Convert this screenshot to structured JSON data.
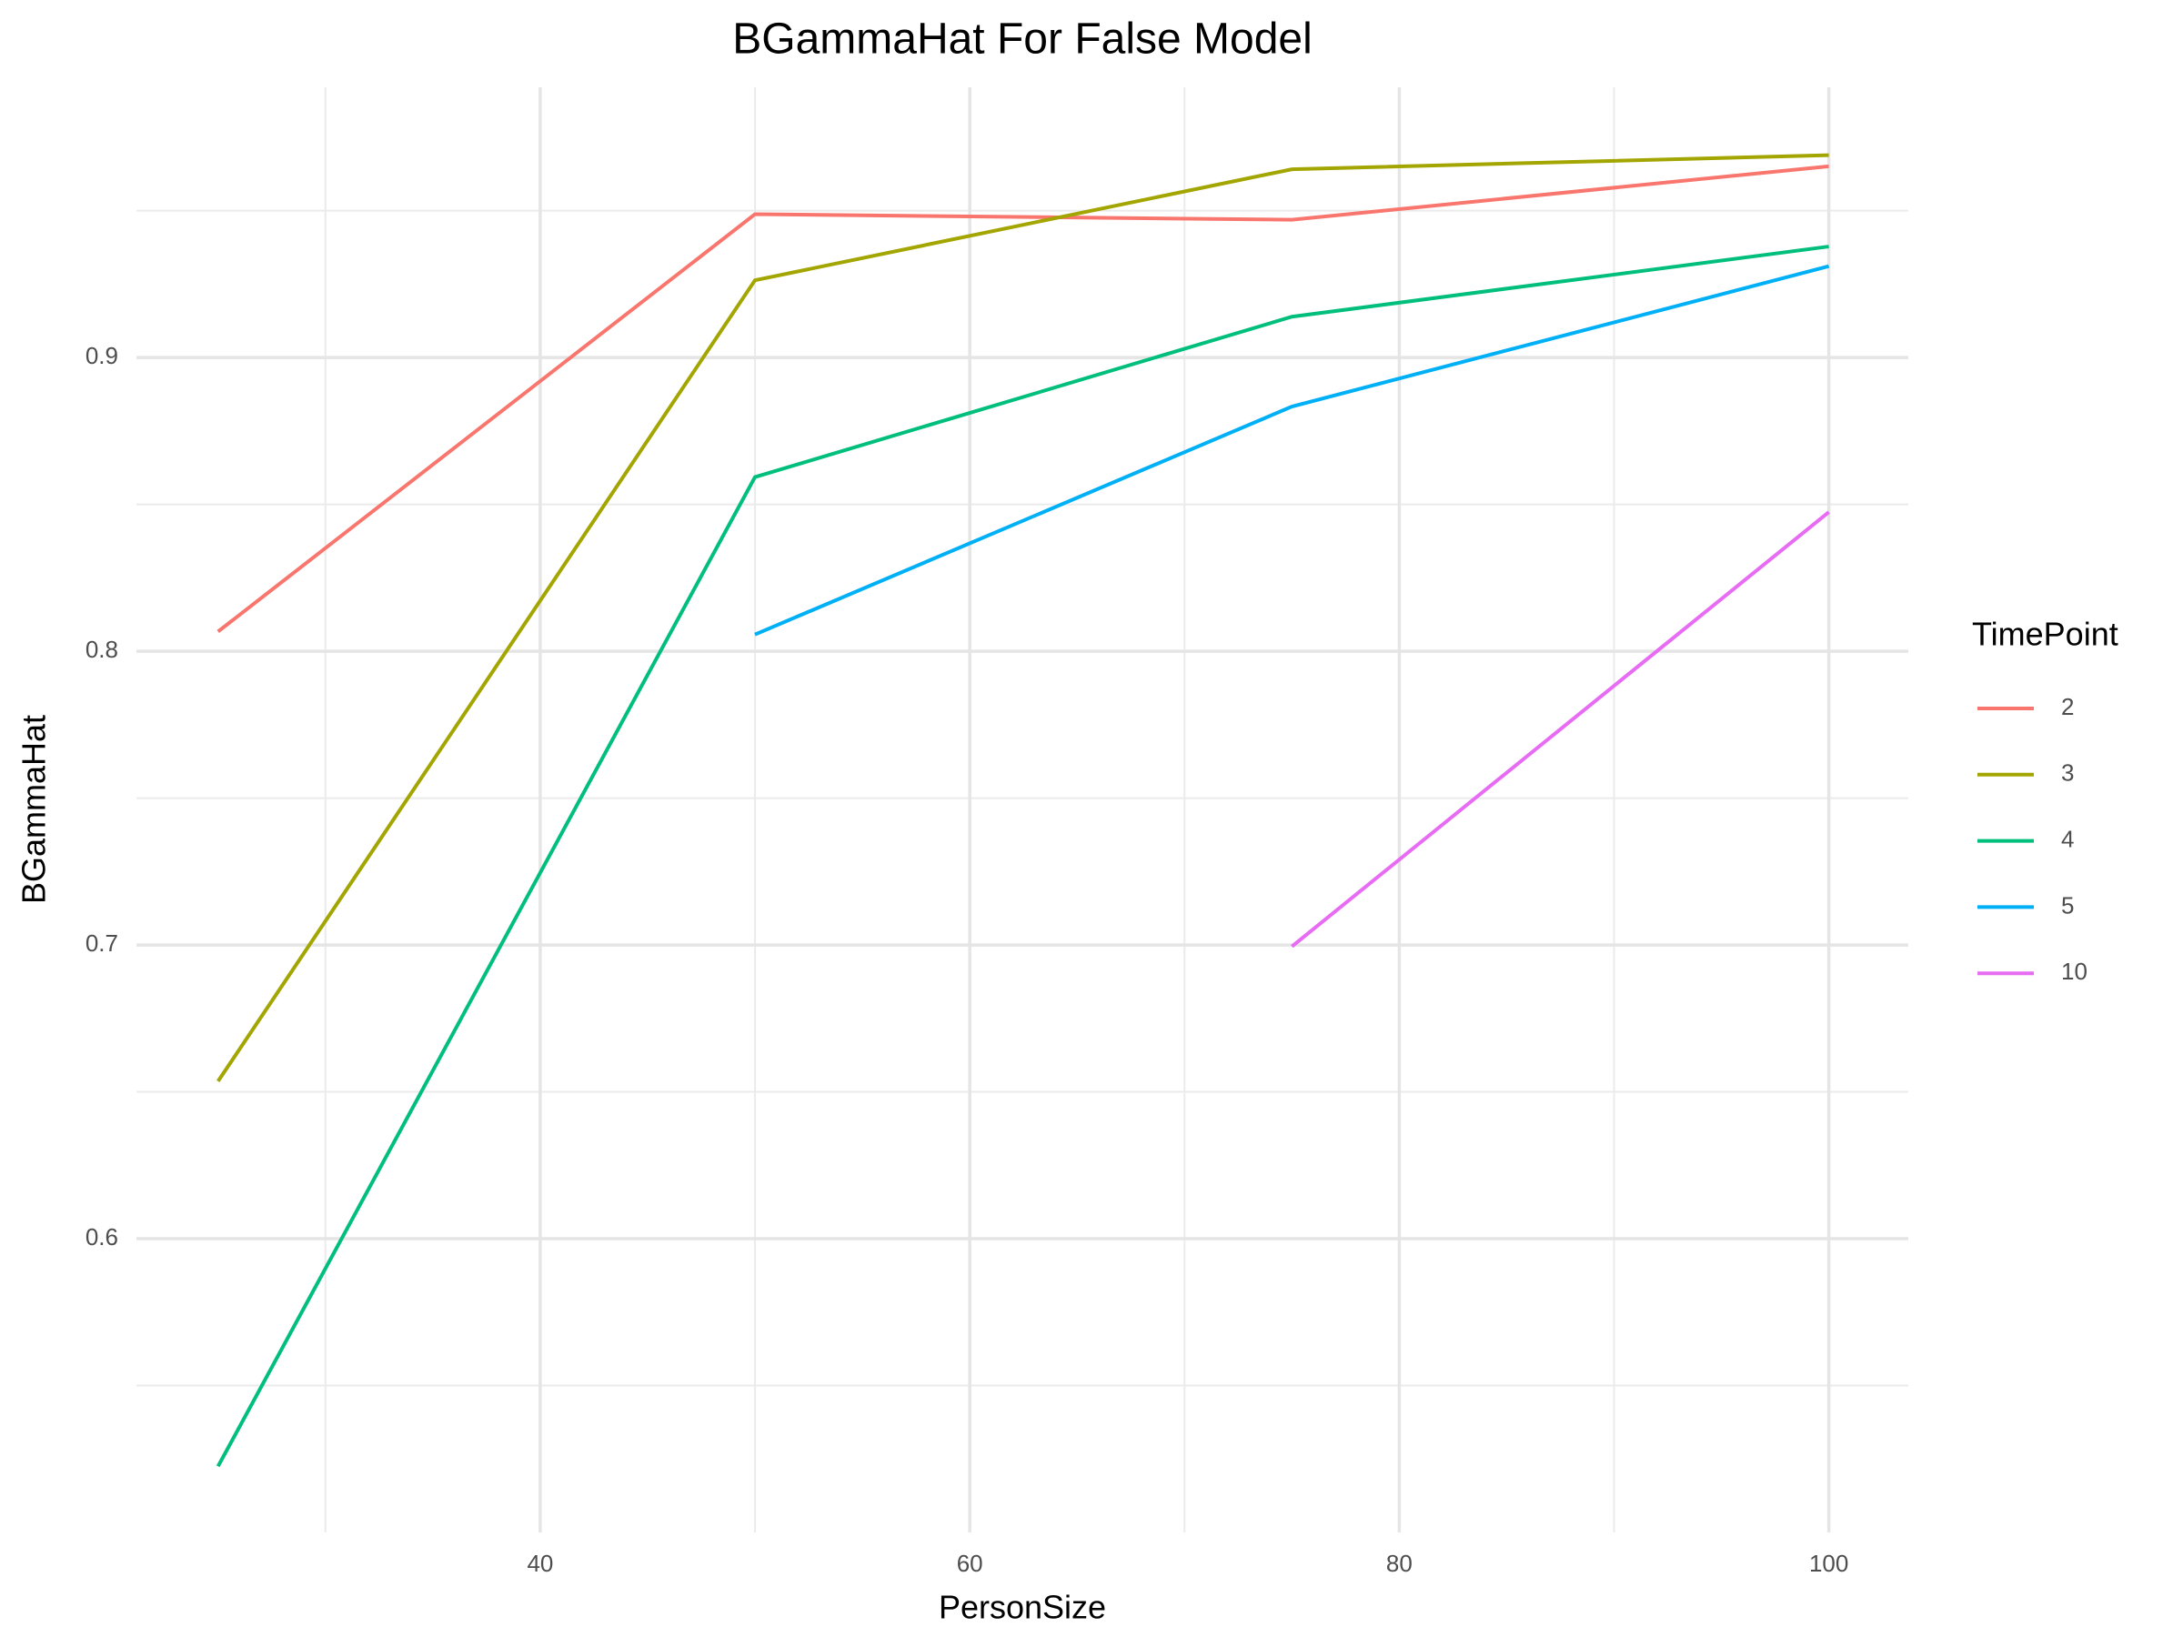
{
  "chart_data": {
    "type": "line",
    "title": "BGammaHat For False Model",
    "x_label": "PersonSize",
    "y_label": "BGammaHat",
    "x": [
      25,
      50,
      75,
      100
    ],
    "series": [
      {
        "name": "2",
        "color": "#F8766D",
        "values": [
          0.8067,
          0.9488,
          0.9469,
          0.9651
        ]
      },
      {
        "name": "3",
        "color": "#A3A500",
        "values": [
          0.6536,
          0.9263,
          0.9641,
          0.9689
        ]
      },
      {
        "name": "4",
        "color": "#00BF7D",
        "values": [
          0.5225,
          0.8593,
          0.9139,
          0.9378
        ]
      },
      {
        "name": "5",
        "color": "#00B0F6",
        "values": [
          null,
          0.8057,
          0.8833,
          0.9311
        ]
      },
      {
        "name": "10",
        "color": "#E76BF3",
        "values": [
          null,
          null,
          0.6995,
          0.8474
        ]
      }
    ],
    "legend_title": "TimePoint",
    "legend": "right",
    "xlim": [
      21.2,
      103.7
    ],
    "xticks": [
      40,
      60,
      80,
      100
    ],
    "ylim": [
      0.5,
      0.992
    ],
    "yticks": [
      0.6,
      0.7,
      0.8,
      0.9
    ],
    "grid": true
  }
}
